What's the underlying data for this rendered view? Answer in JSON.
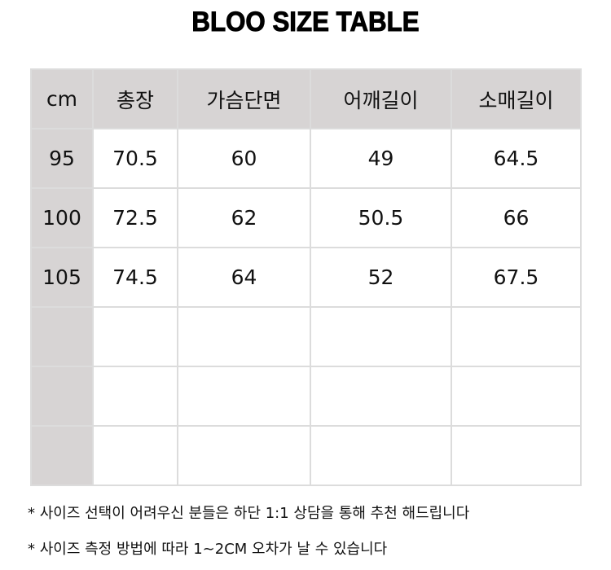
{
  "title": "BLOO SIZE TABLE",
  "table": {
    "headers": [
      "cm",
      "총장",
      "가슴단면",
      "어깨길이",
      "소매길이"
    ],
    "rows": [
      [
        "95",
        "70.5",
        "60",
        "49",
        "64.5"
      ],
      [
        "100",
        "72.5",
        "62",
        "50.5",
        "66"
      ],
      [
        "105",
        "74.5",
        "64",
        "52",
        "67.5"
      ],
      [
        "",
        "",
        "",
        "",
        ""
      ],
      [
        "",
        "",
        "",
        "",
        ""
      ],
      [
        "",
        "",
        "",
        "",
        ""
      ]
    ]
  },
  "notes": [
    "* 사이즈 선택이 어려우신 분들은 하단 1:1 상담을 통해 추천 해드립니다",
    "* 사이즈 측정 방법에 따라 1~2CM 오차가 날 수 있습니다"
  ],
  "colors": {
    "header_bg": "#d7d4d4",
    "border": "#dcdcdc"
  }
}
